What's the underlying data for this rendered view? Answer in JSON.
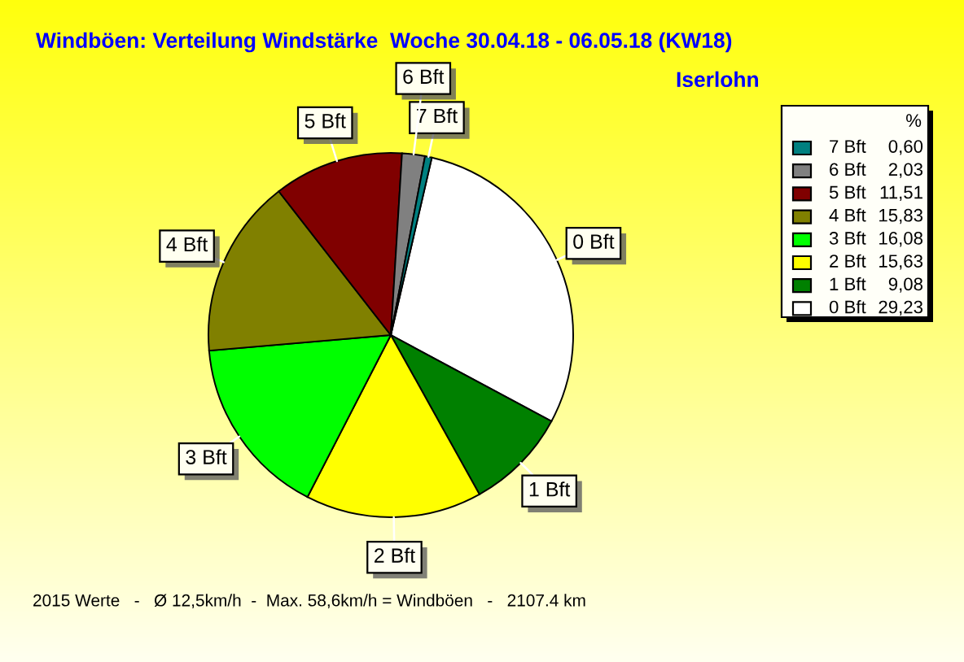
{
  "chart_data": {
    "type": "pie",
    "title": "Windböen: Verteilung Windstärke  Woche 30.04.18 - 06.05.18 (KW18)",
    "subtitle": "Iserlohn",
    "categories": [
      "0 Bft",
      "1 Bft",
      "2 Bft",
      "3 Bft",
      "4 Bft",
      "5 Bft",
      "6 Bft",
      "7 Bft"
    ],
    "values": [
      29.23,
      9.08,
      15.63,
      16.08,
      15.83,
      11.51,
      2.03,
      0.6
    ],
    "colors": [
      "#ffffff",
      "#008000",
      "#ffff00",
      "#00ff00",
      "#808000",
      "#800000",
      "#808080",
      "#008080"
    ],
    "value_labels": [
      "29,23",
      "9,08",
      "15,63",
      "16,08",
      "15,83",
      "11,51",
      "2,03",
      "0,60"
    ],
    "legend": "right",
    "legend_title": "%",
    "annotations": [
      "2015 Werte   -   Ø 12,5km/h  -  Max. 58,6km/h = Windböen   -   2107.4 km"
    ]
  }
}
